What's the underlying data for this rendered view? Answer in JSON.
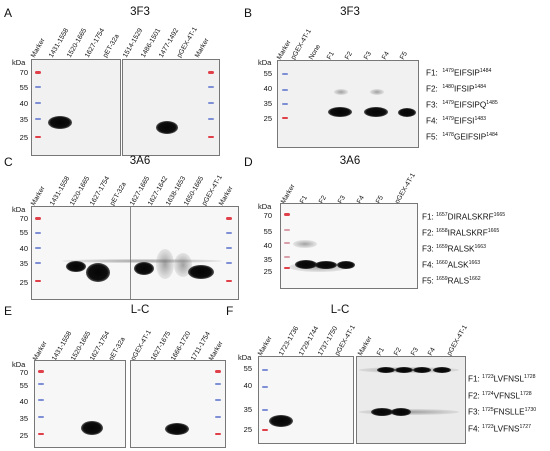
{
  "panels": {
    "A": {
      "letter": "A",
      "title": "3F3",
      "kda": "kDa",
      "mw": [
        "70",
        "55",
        "40",
        "35",
        "25"
      ],
      "lanes_left": [
        "Marker",
        "1431-1558",
        "1520-1665",
        "1627-1754",
        "pET-32a"
      ],
      "lanes_right": [
        "1514-1529",
        "1486-1501",
        "1477-1492",
        "pGEX-4T-1",
        "Marker"
      ]
    },
    "B": {
      "letter": "B",
      "title": "3F3",
      "kda": "kDa",
      "mw": [
        "55",
        "40",
        "35",
        "25"
      ],
      "lanes": [
        "Marker",
        "pGEX-4T-1",
        "None",
        "F1",
        "F2",
        "F3",
        "F4",
        "F5"
      ],
      "seqs": [
        {
          "label": "F1:",
          "start": "1479",
          "motif": "EIFSIP",
          "end": "1484"
        },
        {
          "label": "F2:",
          "start": "1480",
          "motif": "IFSIP",
          "end": "1484"
        },
        {
          "label": "F3:",
          "start": "1479",
          "motif": "EIFSIPQ",
          "end": "1485"
        },
        {
          "label": "F4:",
          "start": "1479",
          "motif": "EIFSI",
          "end": "1483"
        },
        {
          "label": "F5:",
          "start": "1478",
          "motif": "GEIFSIP",
          "end": "1484"
        }
      ]
    },
    "C": {
      "letter": "C",
      "title": "3A6",
      "kda": "kDa",
      "mw": [
        "70",
        "55",
        "40",
        "35",
        "25"
      ],
      "lanes_left": [
        "Marker",
        "1431-1558",
        "1520-1665",
        "1627-1754",
        "pET-32a"
      ],
      "lanes_right": [
        "1627-1665",
        "1627-1642",
        "1638-1653",
        "1650-1665",
        "pGEX-4T-1",
        "Marker"
      ]
    },
    "D": {
      "letter": "D",
      "title": "3A6",
      "kda": "kDa",
      "mw": [
        "70",
        "55",
        "40",
        "35",
        "25"
      ],
      "lanes": [
        "Marker",
        "F1",
        "F2",
        "F3",
        "F4",
        "F5",
        "pGEX-4T-1"
      ],
      "seqs": [
        {
          "label": "F1:",
          "start": "1657",
          "motif": "DIRALSKRF",
          "end": "1665"
        },
        {
          "label": "F2:",
          "start": "1658",
          "motif": "IRALSKRF",
          "end": "1665"
        },
        {
          "label": "F3:",
          "start": "1659",
          "motif": "RALSK",
          "end": "1663"
        },
        {
          "label": "F4:",
          "start": "1660",
          "motif": "ALSK",
          "end": "1663"
        },
        {
          "label": "F5:",
          "start": "1659",
          "motif": "RALS",
          "end": "1662"
        }
      ]
    },
    "E": {
      "letter": "E",
      "title": "L-C",
      "kda": "kDa",
      "mw": [
        "70",
        "55",
        "40",
        "35",
        "25"
      ],
      "lanes_left": [
        "Marker",
        "1431-1558",
        "1520-1665",
        "1627-1754",
        "pET-32a"
      ],
      "lanes_right": [
        "pGEX-4T-1",
        "1627-1675",
        "1666-1720",
        "1711-1754",
        "Marker"
      ]
    },
    "F": {
      "letter": "F",
      "title": "L-C",
      "kda": "kDa",
      "mw": [
        "55",
        "40",
        "35",
        "25"
      ],
      "lanes_left": [
        "Marker",
        "1723-1736",
        "1729-1744",
        "1737-1750",
        "pGEX-4T-1"
      ],
      "lanes_right": [
        "Marker",
        "F1",
        "F2",
        "F3",
        "F4",
        "pGEX-4T-1"
      ],
      "seqs": [
        {
          "label": "F1:",
          "start": "1723",
          "motif": "LVFNSL",
          "end": "1728"
        },
        {
          "label": "F2:",
          "start": "1724",
          "motif": "VFNSL",
          "end": "1728"
        },
        {
          "label": "F3:",
          "start": "1725",
          "motif": "FNSLLE",
          "end": "1730"
        },
        {
          "label": "F4:",
          "start": "1723",
          "motif": "LVFNS",
          "end": "1727"
        }
      ]
    }
  },
  "colors": {
    "ladder_red": "#e0404a",
    "ladder_blue": "#7f8fd6",
    "band": "#0a0a0a",
    "membrane": "#f1f1f1"
  }
}
